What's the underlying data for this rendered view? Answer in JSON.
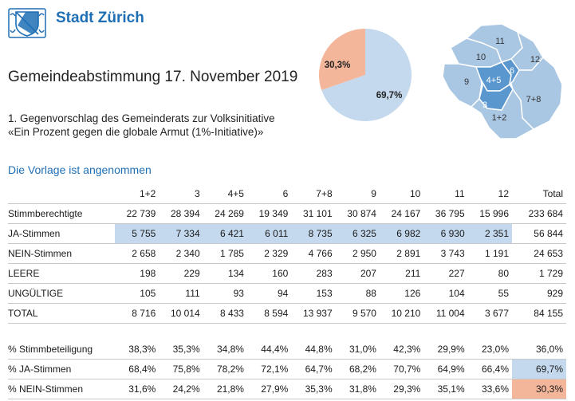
{
  "header": {
    "city_name": "Stadt Zürich",
    "title": "Gemeindeabstimmung 17. November 2019",
    "subtitle_line1": "1. Gegenvorschlag des Gemeinderats zur Volksinitiative",
    "subtitle_line2": "«Ein Prozent gegen die globale Armut (1%-Initiative)»",
    "result_text": "Die Vorlage ist angenommen"
  },
  "pie": {
    "ja_label": "69,7%",
    "nein_label": "30,3%",
    "ja_value": 69.7,
    "nein_value": 30.3,
    "ja_color": "#c5d9ee",
    "nein_color": "#f4b69a"
  },
  "map": {
    "districts": [
      "11",
      "10",
      "12",
      "6",
      "4+5",
      "9",
      "3",
      "7+8",
      "1+2"
    ],
    "base_color": "#a9c6e3",
    "highlight_color": "#5b97cf"
  },
  "table1": {
    "header": [
      "",
      "1+2",
      "3",
      "4+5",
      "6",
      "7+8",
      "9",
      "10",
      "11",
      "12",
      "Total"
    ],
    "rows": [
      [
        "Stimmberechtigte",
        "22 739",
        "28 394",
        "24 269",
        "19 349",
        "31 101",
        "30 874",
        "24 167",
        "36 795",
        "15 996",
        "233 684"
      ],
      [
        "JA-Stimmen",
        "5 755",
        "7 334",
        "6 421",
        "6 011",
        "8 735",
        "6 325",
        "6 982",
        "6 930",
        "2 351",
        "56 844"
      ],
      [
        "NEIN-Stimmen",
        "2 658",
        "2 340",
        "1 785",
        "2 329",
        "4 766",
        "2 950",
        "2 891",
        "3 743",
        "1 191",
        "24 653"
      ],
      [
        "LEERE",
        "198",
        "229",
        "134",
        "160",
        "283",
        "207",
        "211",
        "227",
        "80",
        "1 729"
      ],
      [
        "UNGÜLTIGE",
        "105",
        "111",
        "93",
        "94",
        "153",
        "88",
        "126",
        "104",
        "55",
        "929"
      ],
      [
        "TOTAL",
        "8 716",
        "10 014",
        "8 433",
        "8 594",
        "13 937",
        "9 570",
        "10 210",
        "11 004",
        "3 677",
        "84 155"
      ]
    ]
  },
  "table2": {
    "rows": [
      [
        "% Stimmbeteiligung",
        "38,3%",
        "35,3%",
        "34,8%",
        "44,4%",
        "44,8%",
        "31,0%",
        "42,3%",
        "29,9%",
        "23,0%",
        "36,0%"
      ],
      [
        "% JA-Stimmen",
        "68,4%",
        "75,8%",
        "78,2%",
        "72,1%",
        "64,7%",
        "68,2%",
        "70,7%",
        "64,9%",
        "66,4%",
        "69,7%"
      ],
      [
        "% NEIN-Stimmen",
        "31,6%",
        "24,2%",
        "21,8%",
        "27,9%",
        "35,3%",
        "31,8%",
        "29,3%",
        "35,1%",
        "33,6%",
        "30,3%"
      ]
    ]
  }
}
